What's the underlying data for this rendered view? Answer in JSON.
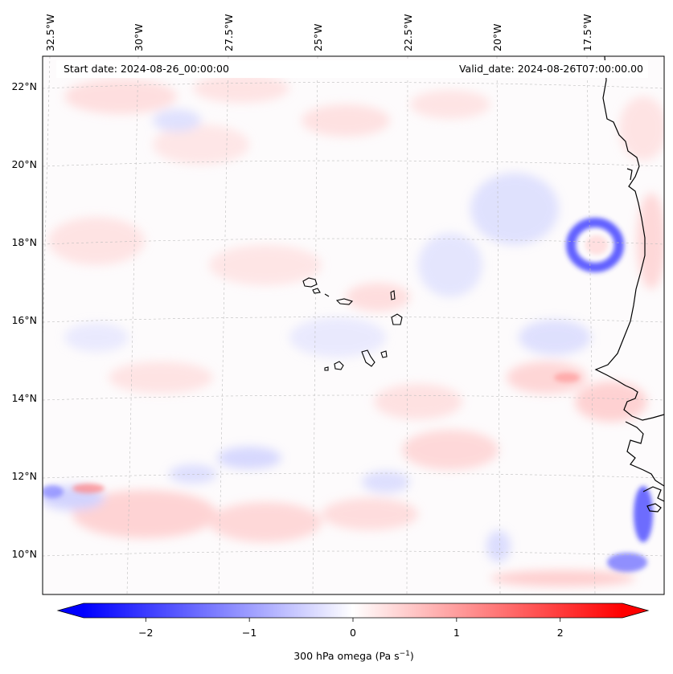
{
  "header": {
    "start_date": "Start date: 2024-08-26_00:00:00",
    "valid_date": "Valid_date: 2024-08-26T07:00:00.00"
  },
  "map": {
    "projection": "lambert-conformal",
    "lon_ticks": [
      "32.5°W",
      "30°W",
      "27.5°W",
      "25°W",
      "22.5°W",
      "20°W",
      "17.5°W"
    ],
    "lat_ticks": [
      "22°N",
      "20°N",
      "18°N",
      "16°N",
      "14°N",
      "12°N",
      "10°N"
    ],
    "gridlines": "dashed light grey",
    "field": "300 hPa omega",
    "features": [
      "Cape Verde islands",
      "West African coastline",
      "cyclonic feature near 18°N 17.5°W"
    ]
  },
  "colorbar": {
    "label": "300 hPa omega (Pa s",
    "label_sup": "−1",
    "label_close": ")",
    "ticks": [
      "−2",
      "−1",
      "0",
      "1",
      "2"
    ],
    "cmap": "bwr",
    "min": -2.6,
    "max": 2.6,
    "extend": "both",
    "colors": {
      "low": "#0000ff",
      "mid": "#ffffff",
      "high": "#ff0000"
    }
  }
}
